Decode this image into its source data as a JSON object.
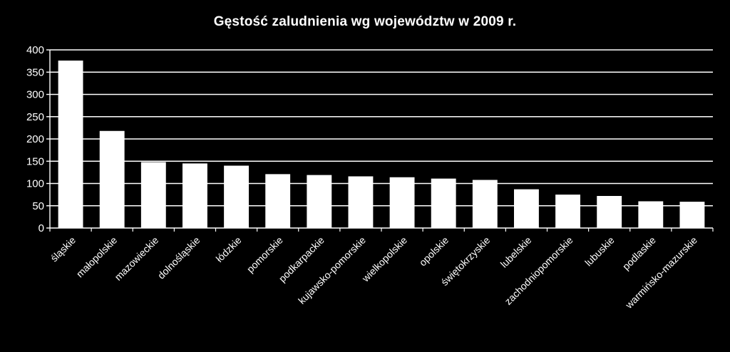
{
  "chart_data": {
    "type": "bar",
    "title": "Gęstość zaludnienia wg województw w 2009  r.",
    "xlabel": "",
    "ylabel": "",
    "ylim": [
      0,
      400
    ],
    "yticks": [
      0,
      50,
      100,
      150,
      200,
      250,
      300,
      350,
      400
    ],
    "grid": true,
    "legend": "none",
    "categories": [
      "śląskie",
      "małopolskie",
      "mazowieckie",
      "dolnośląskie",
      "łódzkie",
      "pomorskie",
      "podkarpackie",
      "kujawsko-pomorskie",
      "wielkopolskie",
      "opolskie",
      "świętokrzyskie",
      "lubelskie",
      "zachodniopomorskie",
      "lubuskie",
      "podlaskie",
      "warmińsko-mazurskie"
    ],
    "values": [
      376,
      218,
      148,
      145,
      140,
      121,
      119,
      116,
      114,
      111,
      108,
      87,
      75,
      72,
      60,
      59
    ]
  },
  "colors": {
    "background": "#000000",
    "bar": "#ffffff",
    "grid": "#ffffff",
    "text": "#ffffff"
  }
}
